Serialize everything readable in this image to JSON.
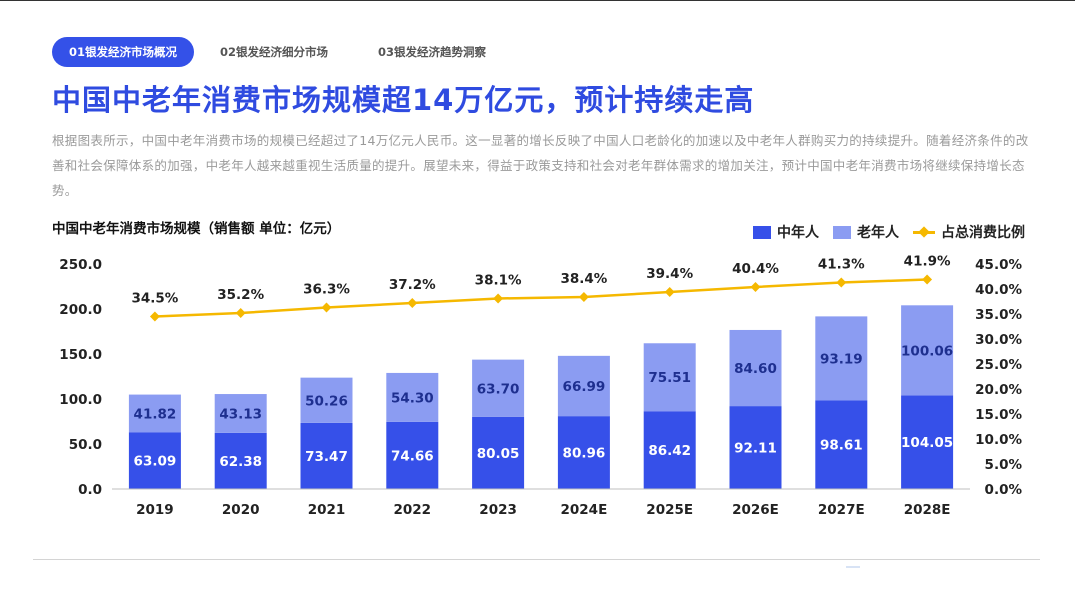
{
  "tabs": [
    {
      "label": "01银发经济市场概况",
      "active": true
    },
    {
      "label": "02银发经济细分市场",
      "active": false
    },
    {
      "label": "03银发经济趋势洞察",
      "active": false
    }
  ],
  "title": "中国中老年消费市场规模超14万亿元，预计持续走高",
  "description": "根据图表所示，中国中老年消费市场的规模已经超过了14万亿元人民币。这一显著的增长反映了中国人口老龄化的加速以及中老年人群购买力的持续提升。随着经济条件的改善和社会保障体系的加强，中老年人越来越重视生活质量的提升。展望未来，得益于政策支持和社会对老年群体需求的增加关注，预计中国中老年消费市场将继续保持增长态势。",
  "colors": {
    "accent": "#3451e8",
    "middle_aged": "#3650e9",
    "elderly": "#8b9cf2",
    "ratio_line": "#f5b800"
  },
  "chart_data": {
    "type": "bar",
    "stacked": true,
    "title": "中国中老年消费市场规模（销售额   单位：亿元）",
    "categories": [
      "2019",
      "2020",
      "2021",
      "2022",
      "2023",
      "2024E",
      "2025E",
      "2026E",
      "2027E",
      "2028E"
    ],
    "series": [
      {
        "name": "中年人",
        "values": [
          63.09,
          62.38,
          73.47,
          74.66,
          80.05,
          80.96,
          86.42,
          92.11,
          98.61,
          104.05
        ]
      },
      {
        "name": "老年人",
        "values": [
          41.82,
          43.13,
          50.26,
          54.3,
          63.7,
          66.99,
          75.51,
          84.6,
          93.19,
          100.06
        ]
      }
    ],
    "line_series": {
      "name": "占总消费比例",
      "axis": "right",
      "values": [
        34.5,
        35.2,
        36.3,
        37.2,
        38.1,
        38.4,
        39.4,
        40.4,
        41.3,
        41.9
      ]
    },
    "left_axis": {
      "ylim": [
        0,
        250
      ],
      "ticks": [
        "0.0",
        "50.0",
        "100.0",
        "150.0",
        "200.0",
        "250.0"
      ]
    },
    "right_axis": {
      "ylim": [
        0,
        45
      ],
      "ticks": [
        "0.0%",
        "5.0%",
        "10.0%",
        "15.0%",
        "20.0%",
        "25.0%",
        "30.0%",
        "35.0%",
        "40.0%",
        "45.0%"
      ]
    },
    "bar_value_labels": [
      "63.09",
      "62.38",
      "73.47",
      "74.66",
      "80.05",
      "80.96",
      "86.42",
      "92.11",
      "98.61",
      "104.05",
      "41.82",
      "43.13",
      "50.26",
      "54.30",
      "63.70",
      "66.99",
      "75.51",
      "84.60",
      "93.19",
      "100.06"
    ],
    "line_value_labels": [
      "34.5%",
      "35.2%",
      "36.3%",
      "37.2%",
      "38.1%",
      "38.4%",
      "39.4%",
      "40.4%",
      "41.3%",
      "41.9%"
    ],
    "legend": "top-right",
    "grid": false
  }
}
